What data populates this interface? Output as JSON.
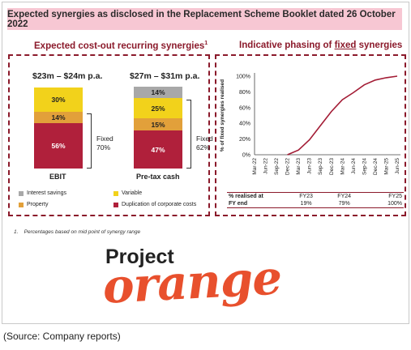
{
  "banner": "Expected synergies as disclosed in the Replacement Scheme Booklet dated 26 October 2022",
  "left_title": "Expected cost-out recurring synergies",
  "left_title_sup": "1",
  "right_title_pre": "Indicative phasing of ",
  "right_title_em": "fixed",
  "right_title_post": " synergies",
  "colors": {
    "interest": "#a8a8a8",
    "variable": "#f2d21b",
    "property": "#e2a03a",
    "duplication": "#b0203b",
    "line": "#a31c35"
  },
  "chart_data": [
    {
      "type": "bar",
      "stacked": true,
      "categories": [
        "EBIT",
        "Pre-tax cash"
      ],
      "range_labels": [
        "$23m – $24m p.a.",
        "$27m – $31m p.a."
      ],
      "series": [
        {
          "name": "Duplication of corporate costs",
          "values": [
            56,
            47
          ],
          "labels": [
            "56%",
            "47%"
          ]
        },
        {
          "name": "Property",
          "values": [
            14,
            15
          ],
          "labels": [
            "14%",
            "15%"
          ]
        },
        {
          "name": "Variable",
          "values": [
            30,
            25
          ],
          "labels": [
            "30%",
            "25%"
          ]
        },
        {
          "name": "Interest savings",
          "values": [
            0,
            14
          ],
          "labels": [
            "",
            "14%"
          ]
        }
      ],
      "fixed_labels": [
        [
          "Fixed",
          "70%"
        ],
        [
          "Fixed",
          "62%"
        ]
      ]
    },
    {
      "type": "line",
      "ylabel": "% of fixed synergies realised",
      "y_ticks": [
        "0%",
        "20%",
        "40%",
        "60%",
        "80%",
        "100%"
      ],
      "ylim": [
        0,
        100
      ],
      "x": [
        "Mar-22",
        "Jun-22",
        "Sep-22",
        "Dec-22",
        "Mar-23",
        "Jun-23",
        "Sep-23",
        "Dec-23",
        "Mar-24",
        "Jun-24",
        "Sep-24",
        "Dec-24",
        "Mar-25",
        "Jun-25"
      ],
      "y": [
        0,
        0,
        0,
        0,
        6,
        19,
        37,
        55,
        70,
        79,
        89,
        95,
        98,
        100
      ]
    }
  ],
  "legend": {
    "interest": "Interest savings",
    "variable": "Variable",
    "property": "Property",
    "duplication": "Duplication of corporate costs"
  },
  "table": {
    "header": [
      "% realised at",
      "FY23",
      "FY24",
      "FY25"
    ],
    "row": [
      "FY end",
      "19%",
      "79%",
      "100%"
    ]
  },
  "footnote_num": "1.",
  "footnote": "Percentages based on mid point of synergy range",
  "logo_top": "Project",
  "logo_bottom": "orange",
  "source": "(Source: Company reports)"
}
